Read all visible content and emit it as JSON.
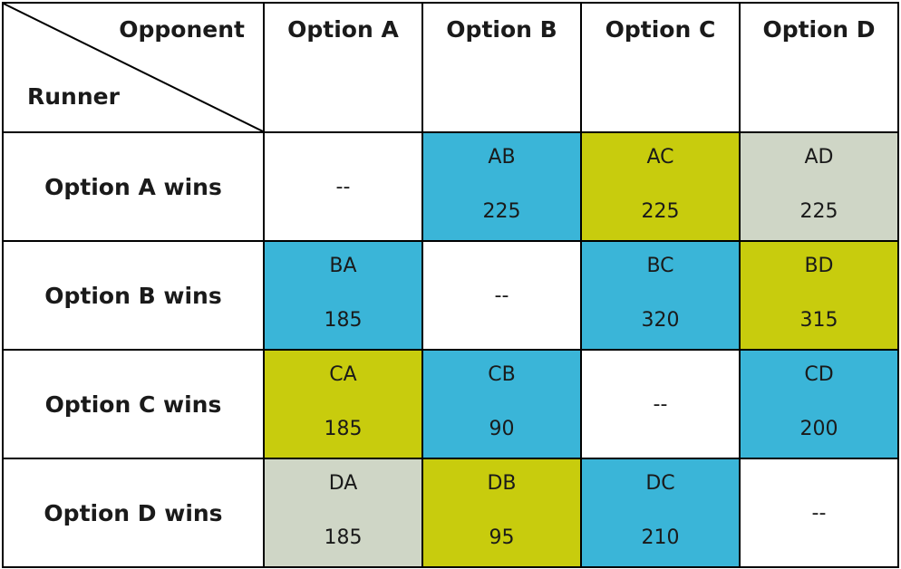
{
  "table": {
    "corner": {
      "column_label": "Opponent",
      "row_label": "Runner"
    },
    "columns": [
      "Option A",
      "Option B",
      "Option C",
      "Option D"
    ],
    "colors": {
      "blue": "#3ab5d8",
      "olive": "#c8cc0d",
      "gray": "#cfd6c6",
      "white": "#ffffff"
    },
    "rows": [
      {
        "label": "Option A wins",
        "cells": [
          {
            "pair": "",
            "value": "--",
            "color": "white"
          },
          {
            "pair": "AB",
            "value": "225",
            "color": "blue"
          },
          {
            "pair": "AC",
            "value": "225",
            "color": "olive"
          },
          {
            "pair": "AD",
            "value": "225",
            "color": "gray"
          }
        ]
      },
      {
        "label": "Option B wins",
        "cells": [
          {
            "pair": "BA",
            "value": "185",
            "color": "blue"
          },
          {
            "pair": "",
            "value": "--",
            "color": "white"
          },
          {
            "pair": "BC",
            "value": "320",
            "color": "blue"
          },
          {
            "pair": "BD",
            "value": "315",
            "color": "olive"
          }
        ]
      },
      {
        "label": "Option C wins",
        "cells": [
          {
            "pair": "CA",
            "value": "185",
            "color": "olive"
          },
          {
            "pair": "CB",
            "value": "90",
            "color": "blue"
          },
          {
            "pair": "",
            "value": "--",
            "color": "white"
          },
          {
            "pair": "CD",
            "value": "200",
            "color": "blue"
          }
        ]
      },
      {
        "label": "Option D wins",
        "cells": [
          {
            "pair": "DA",
            "value": "185",
            "color": "gray"
          },
          {
            "pair": "DB",
            "value": "95",
            "color": "olive"
          },
          {
            "pair": "DC",
            "value": "210",
            "color": "blue"
          },
          {
            "pair": "",
            "value": "--",
            "color": "white"
          }
        ]
      }
    ]
  }
}
